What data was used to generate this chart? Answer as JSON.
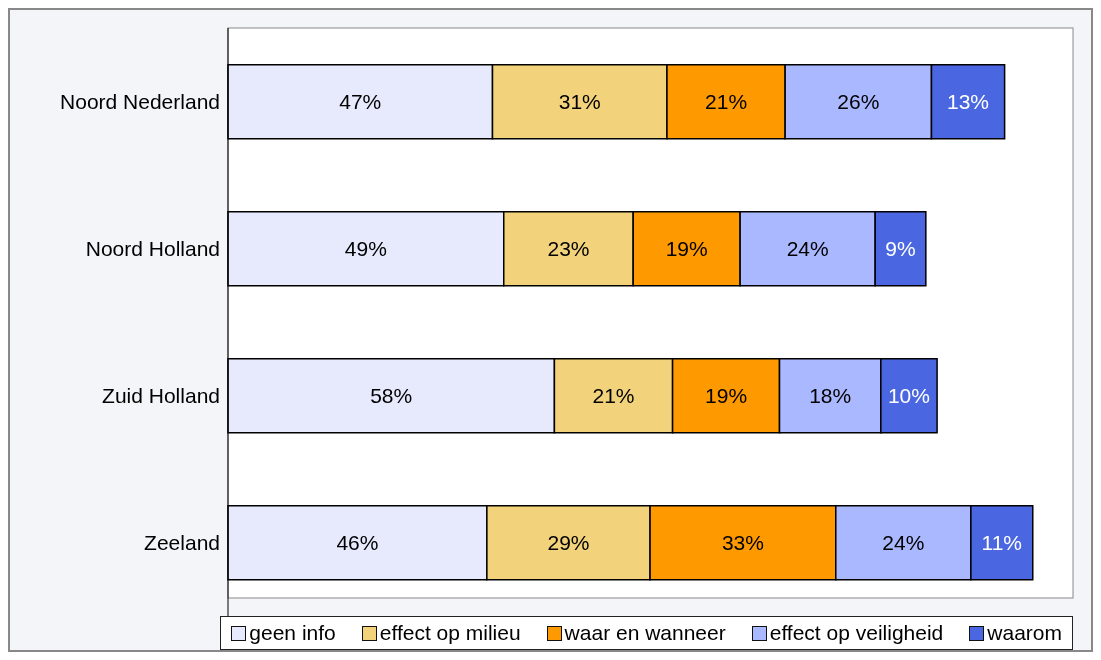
{
  "chart_data": {
    "type": "bar",
    "orientation": "horizontal",
    "stacked": true,
    "legend": "bottom",
    "grid": false,
    "categories": [
      "Noord Nederland",
      "Noord Holland",
      "Zuid Holland",
      "Zeeland"
    ],
    "series": [
      {
        "name": "geen info",
        "color": "#e6eafc",
        "values": [
          47,
          49,
          58,
          46
        ],
        "value_labels": [
          "47%",
          "49%",
          "58%",
          "46%"
        ]
      },
      {
        "name": "effect op milieu",
        "color": "#f2d27a",
        "values": [
          31,
          23,
          21,
          29
        ],
        "value_labels": [
          "31%",
          "23%",
          "21%",
          "29%"
        ]
      },
      {
        "name": "waar en wanneer",
        "color": "#ff9900",
        "values": [
          21,
          19,
          19,
          33
        ],
        "value_labels": [
          "21%",
          "19%",
          "19%",
          "33%"
        ]
      },
      {
        "name": "effect op veiligheid",
        "color": "#aab8ff",
        "values": [
          26,
          24,
          18,
          24
        ],
        "value_labels": [
          "26%",
          "24%",
          "18%",
          "24%"
        ]
      },
      {
        "name": "waarom",
        "color": "#4a66e0",
        "values": [
          13,
          9,
          10,
          11
        ],
        "value_labels": [
          "13%",
          "9%",
          "10%",
          "11%"
        ]
      }
    ]
  }
}
